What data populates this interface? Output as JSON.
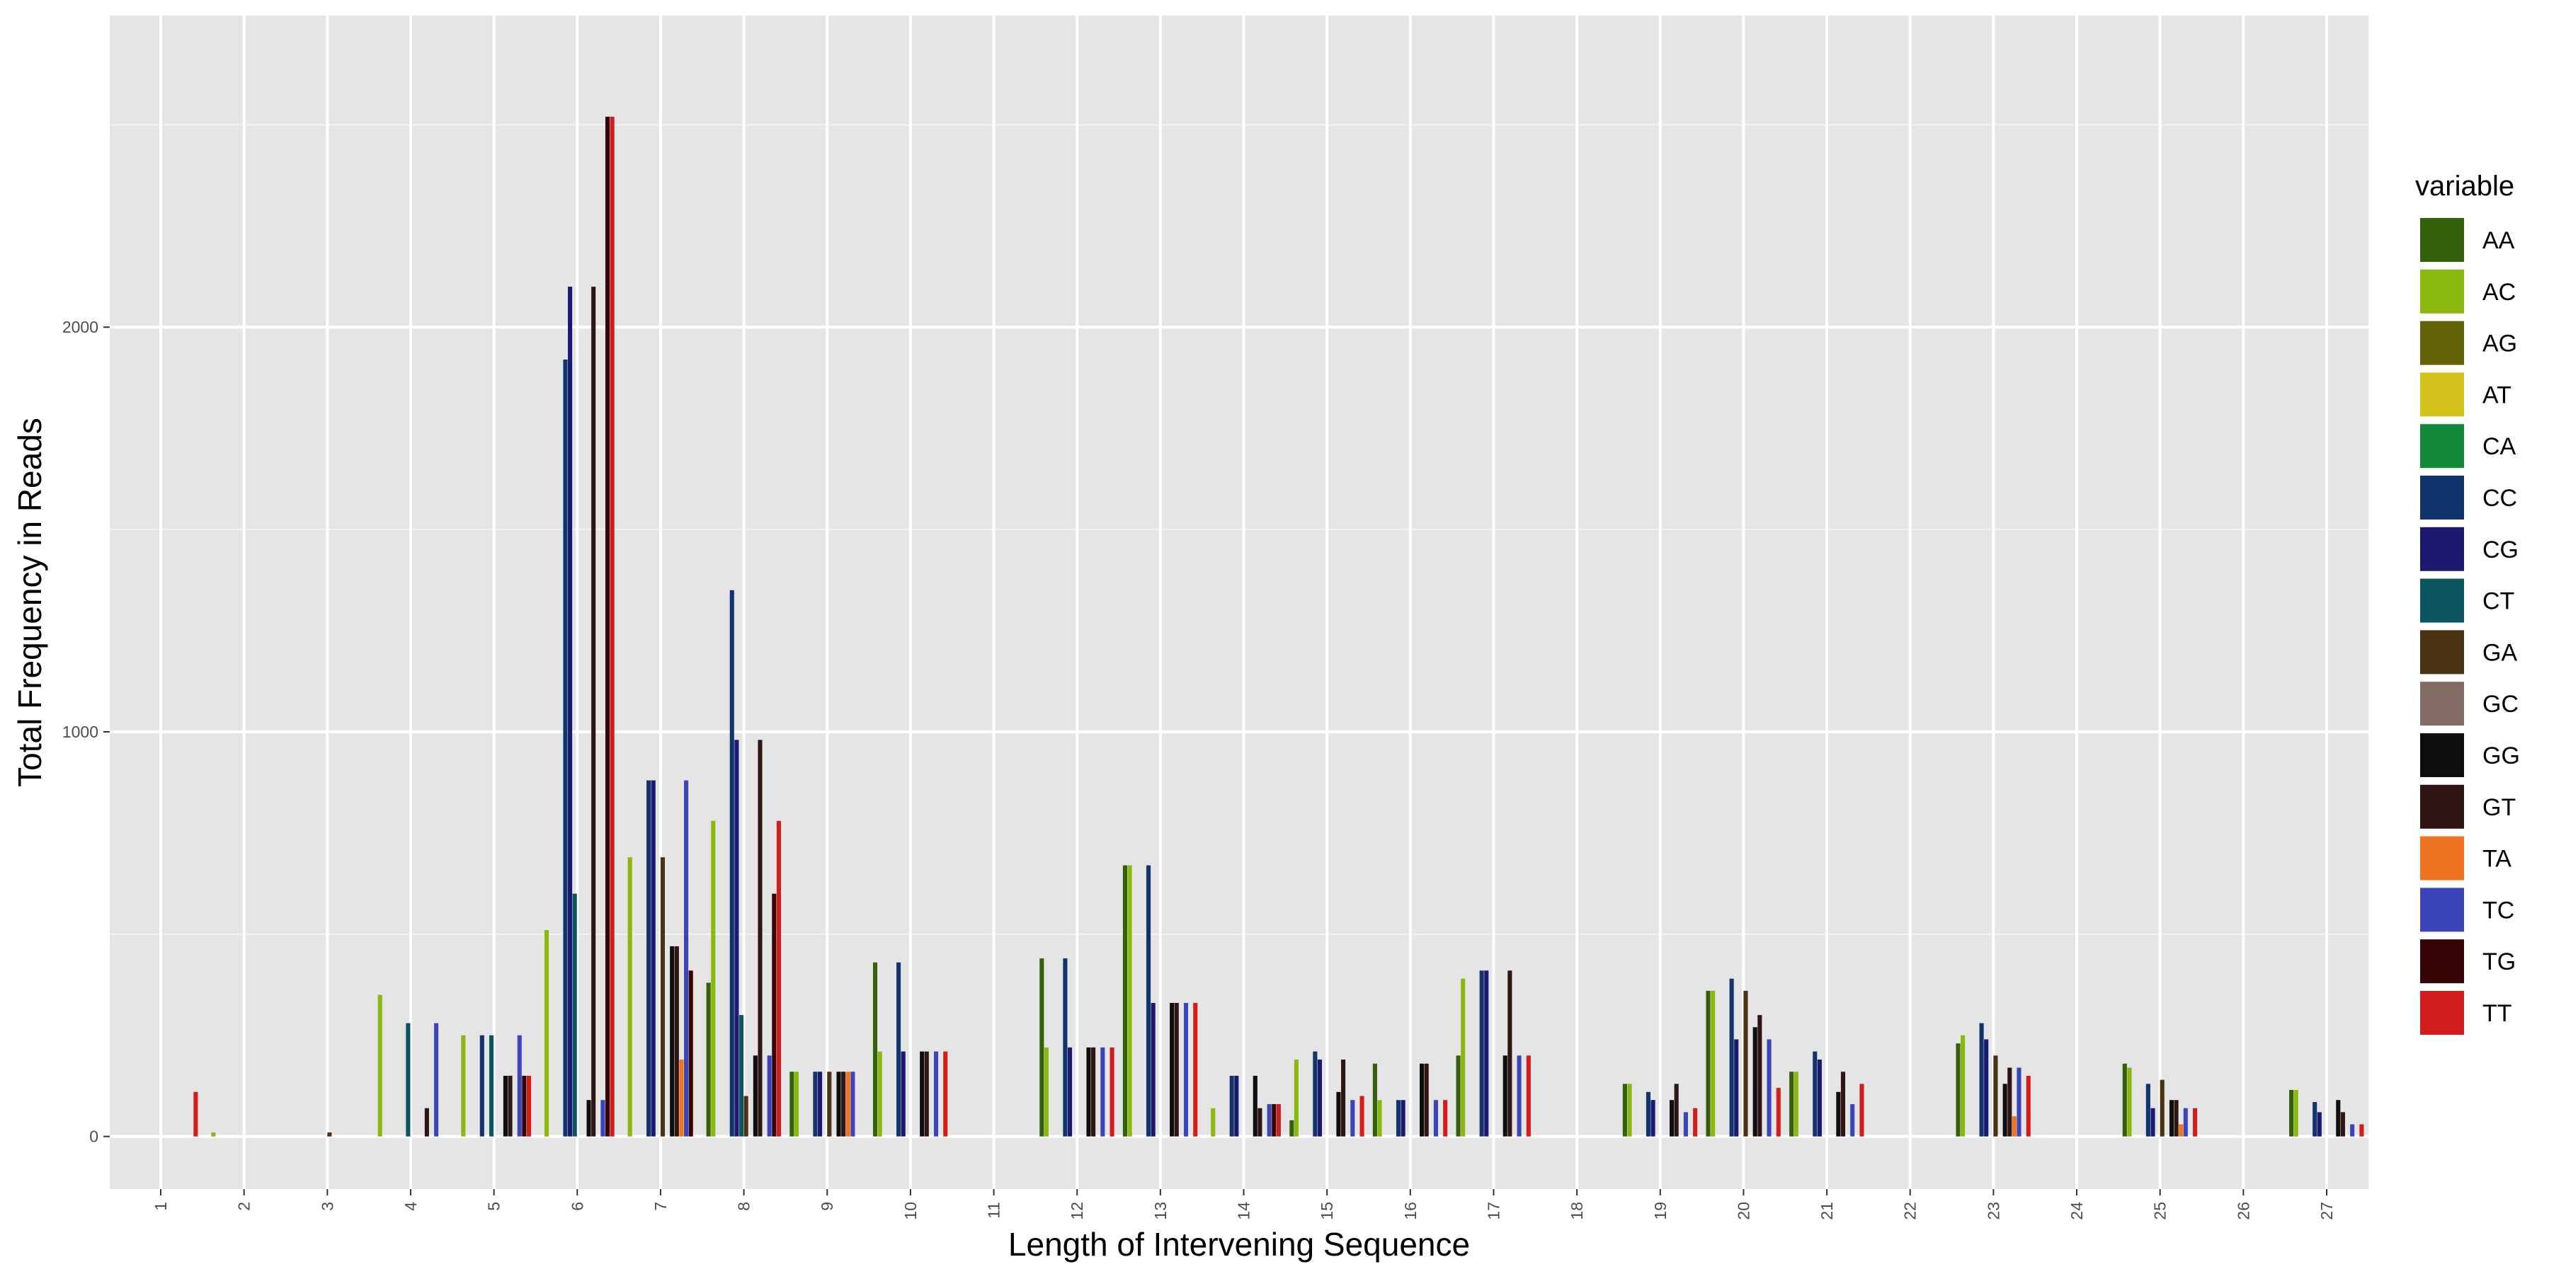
{
  "chart_data": {
    "type": "bar",
    "xlabel": "Length of Intervening Sequence",
    "ylabel": "Total Frequency in Reads",
    "ylim": [
      -130,
      2770
    ],
    "yticks": [
      0,
      1000,
      2000
    ],
    "grid": true,
    "legend_position": "right",
    "legend_title": "variable",
    "categories": [
      "1",
      "2",
      "3",
      "4",
      "5",
      "6",
      "7",
      "8",
      "9",
      "10",
      "11",
      "12",
      "13",
      "14",
      "15",
      "16",
      "17",
      "18",
      "19",
      "20",
      "21",
      "22",
      "23",
      "24",
      "25",
      "26",
      "27"
    ],
    "series": [
      {
        "name": "AA",
        "color": "#33600a",
        "values": [
          0,
          0,
          0,
          0,
          0,
          0,
          0,
          380,
          160,
          430,
          0,
          440,
          670,
          0,
          40,
          180,
          200,
          0,
          130,
          360,
          160,
          0,
          230,
          0,
          180,
          0,
          115
        ]
      },
      {
        "name": "AC",
        "color": "#8bb80e",
        "values": [
          0,
          0,
          0,
          350,
          250,
          510,
          690,
          780,
          160,
          210,
          0,
          220,
          670,
          70,
          190,
          90,
          390,
          0,
          130,
          360,
          160,
          0,
          250,
          0,
          170,
          0,
          115
        ]
      },
      {
        "name": "AG",
        "color": "#626207",
        "values": [
          0,
          0,
          0,
          0,
          0,
          0,
          0,
          0,
          0,
          0,
          0,
          0,
          0,
          0,
          0,
          0,
          0,
          0,
          0,
          0,
          0,
          0,
          0,
          0,
          0,
          0,
          0
        ]
      },
      {
        "name": "AT",
        "color": "#d3c31c",
        "values": [
          0,
          0,
          0,
          0,
          0,
          0,
          0,
          0,
          0,
          0,
          0,
          0,
          0,
          0,
          0,
          0,
          0,
          0,
          0,
          0,
          0,
          0,
          0,
          0,
          0,
          0,
          0
        ]
      },
      {
        "name": "CA",
        "color": "#138a39",
        "values": [
          0,
          0,
          0,
          0,
          0,
          0,
          0,
          0,
          0,
          0,
          0,
          0,
          0,
          0,
          0,
          0,
          0,
          0,
          0,
          0,
          0,
          0,
          0,
          0,
          0,
          0,
          0
        ]
      },
      {
        "name": "CC",
        "color": "#10346b",
        "values": [
          0,
          0,
          0,
          0,
          250,
          1920,
          880,
          1350,
          160,
          430,
          0,
          440,
          670,
          150,
          210,
          90,
          410,
          0,
          110,
          390,
          210,
          0,
          280,
          0,
          130,
          0,
          85
        ]
      },
      {
        "name": "CG",
        "color": "#1c1970",
        "values": [
          0,
          0,
          0,
          0,
          0,
          2100,
          880,
          980,
          160,
          210,
          0,
          220,
          330,
          150,
          190,
          90,
          410,
          0,
          90,
          240,
          190,
          0,
          240,
          0,
          70,
          0,
          60
        ]
      },
      {
        "name": "CT",
        "color": "#0b5560",
        "values": [
          0,
          0,
          0,
          280,
          250,
          600,
          0,
          300,
          0,
          0,
          0,
          0,
          0,
          0,
          0,
          0,
          0,
          0,
          0,
          0,
          0,
          0,
          0,
          0,
          0,
          0,
          0
        ]
      },
      {
        "name": "GA",
        "color": "#4a3312",
        "values": [
          0,
          0,
          0,
          0,
          0,
          0,
          690,
          100,
          160,
          0,
          0,
          0,
          0,
          0,
          0,
          0,
          0,
          0,
          0,
          360,
          0,
          0,
          200,
          0,
          140,
          0,
          0
        ]
      },
      {
        "name": "GC",
        "color": "#826b63",
        "values": [
          0,
          0,
          0,
          0,
          0,
          0,
          0,
          0,
          0,
          0,
          0,
          0,
          0,
          0,
          0,
          0,
          0,
          0,
          0,
          0,
          0,
          0,
          0,
          0,
          0,
          0,
          0
        ]
      },
      {
        "name": "GG",
        "color": "#0e0e0e",
        "values": [
          0,
          0,
          0,
          0,
          150,
          90,
          470,
          200,
          160,
          210,
          0,
          220,
          330,
          150,
          110,
          180,
          200,
          0,
          90,
          270,
          110,
          0,
          130,
          0,
          90,
          0,
          90
        ]
      },
      {
        "name": "GT",
        "color": "#2f1513",
        "values": [
          0,
          0,
          0,
          70,
          150,
          2100,
          470,
          980,
          160,
          210,
          0,
          220,
          330,
          70,
          190,
          180,
          410,
          0,
          130,
          300,
          160,
          0,
          170,
          0,
          90,
          0,
          60
        ]
      },
      {
        "name": "TA",
        "color": "#ee741f",
        "values": [
          0,
          0,
          0,
          0,
          0,
          0,
          190,
          0,
          160,
          0,
          0,
          0,
          0,
          0,
          0,
          0,
          0,
          0,
          0,
          0,
          0,
          0,
          50,
          0,
          30,
          0,
          0
        ]
      },
      {
        "name": "TC",
        "color": "#3c45b8",
        "values": [
          0,
          0,
          0,
          280,
          250,
          90,
          880,
          200,
          160,
          210,
          0,
          220,
          330,
          80,
          90,
          90,
          200,
          0,
          60,
          240,
          80,
          0,
          170,
          0,
          70,
          0,
          30
        ]
      },
      {
        "name": "TG",
        "color": "#360404",
        "values": [
          0,
          0,
          0,
          0,
          150,
          2520,
          410,
          600,
          0,
          0,
          0,
          0,
          0,
          80,
          0,
          0,
          0,
          0,
          0,
          0,
          0,
          0,
          0,
          0,
          0,
          0,
          0
        ]
      },
      {
        "name": "TT",
        "color": "#d31c1c",
        "values": [
          110,
          0,
          0,
          0,
          150,
          2520,
          0,
          780,
          0,
          210,
          0,
          220,
          330,
          80,
          100,
          90,
          200,
          0,
          70,
          120,
          130,
          0,
          150,
          0,
          70,
          0,
          30
        ]
      }
    ],
    "extra_bars": [
      {
        "category": "2",
        "series": "AC",
        "value": 10
      },
      {
        "category": "3",
        "series": "GA",
        "value": 10
      }
    ]
  }
}
